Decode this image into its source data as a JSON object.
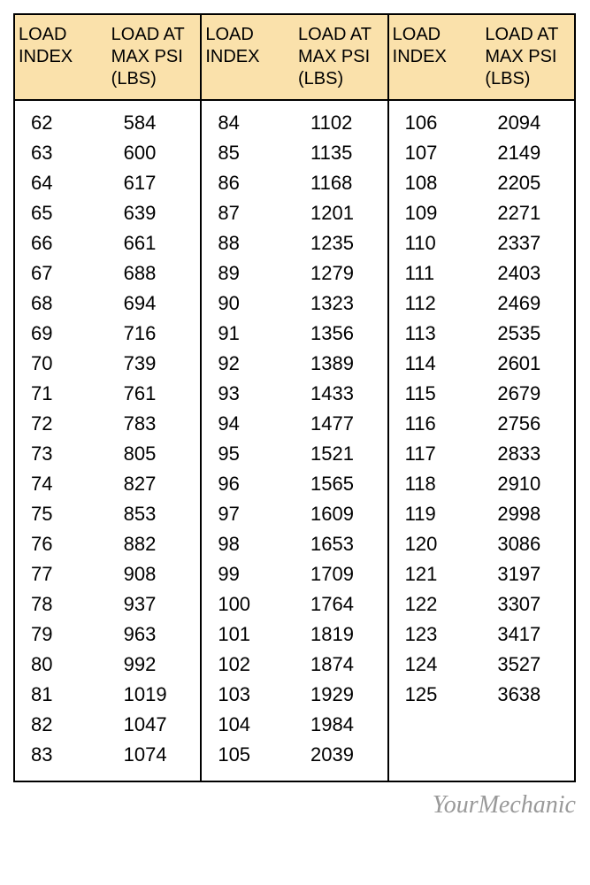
{
  "table": {
    "header": {
      "col1": "LOAD\nINDEX",
      "col2": "LOAD AT\nMAX PSI\n(LBS)"
    },
    "groups": [
      {
        "index": [
          62,
          63,
          64,
          65,
          66,
          67,
          68,
          69,
          70,
          71,
          72,
          73,
          74,
          75,
          76,
          77,
          78,
          79,
          80,
          81,
          82,
          83
        ],
        "load": [
          584,
          600,
          617,
          639,
          661,
          688,
          694,
          716,
          739,
          761,
          783,
          805,
          827,
          853,
          882,
          908,
          937,
          963,
          992,
          1019,
          1047,
          1074
        ]
      },
      {
        "index": [
          84,
          85,
          86,
          87,
          88,
          89,
          90,
          91,
          92,
          93,
          94,
          95,
          96,
          97,
          98,
          99,
          100,
          101,
          102,
          103,
          104,
          105
        ],
        "load": [
          1102,
          1135,
          1168,
          1201,
          1235,
          1279,
          1323,
          1356,
          1389,
          1433,
          1477,
          1521,
          1565,
          1609,
          1653,
          1709,
          1764,
          1819,
          1874,
          1929,
          1984,
          2039
        ]
      },
      {
        "index": [
          106,
          107,
          108,
          109,
          110,
          111,
          112,
          113,
          114,
          115,
          116,
          117,
          118,
          119,
          120,
          121,
          122,
          123,
          124,
          125
        ],
        "load": [
          2094,
          2149,
          2205,
          2271,
          2337,
          2403,
          2469,
          2535,
          2601,
          2679,
          2756,
          2833,
          2910,
          2998,
          3086,
          3197,
          3307,
          3417,
          3527,
          3638
        ]
      }
    ],
    "style": {
      "header_bg": "#fae1ab",
      "border_color": "#000000",
      "font_size_header": 20,
      "font_size_body": 22,
      "text_color": "#000000"
    }
  },
  "footer": {
    "text": "YourMechanic",
    "color": "#999999",
    "font_family": "cursive",
    "font_size": 28
  }
}
